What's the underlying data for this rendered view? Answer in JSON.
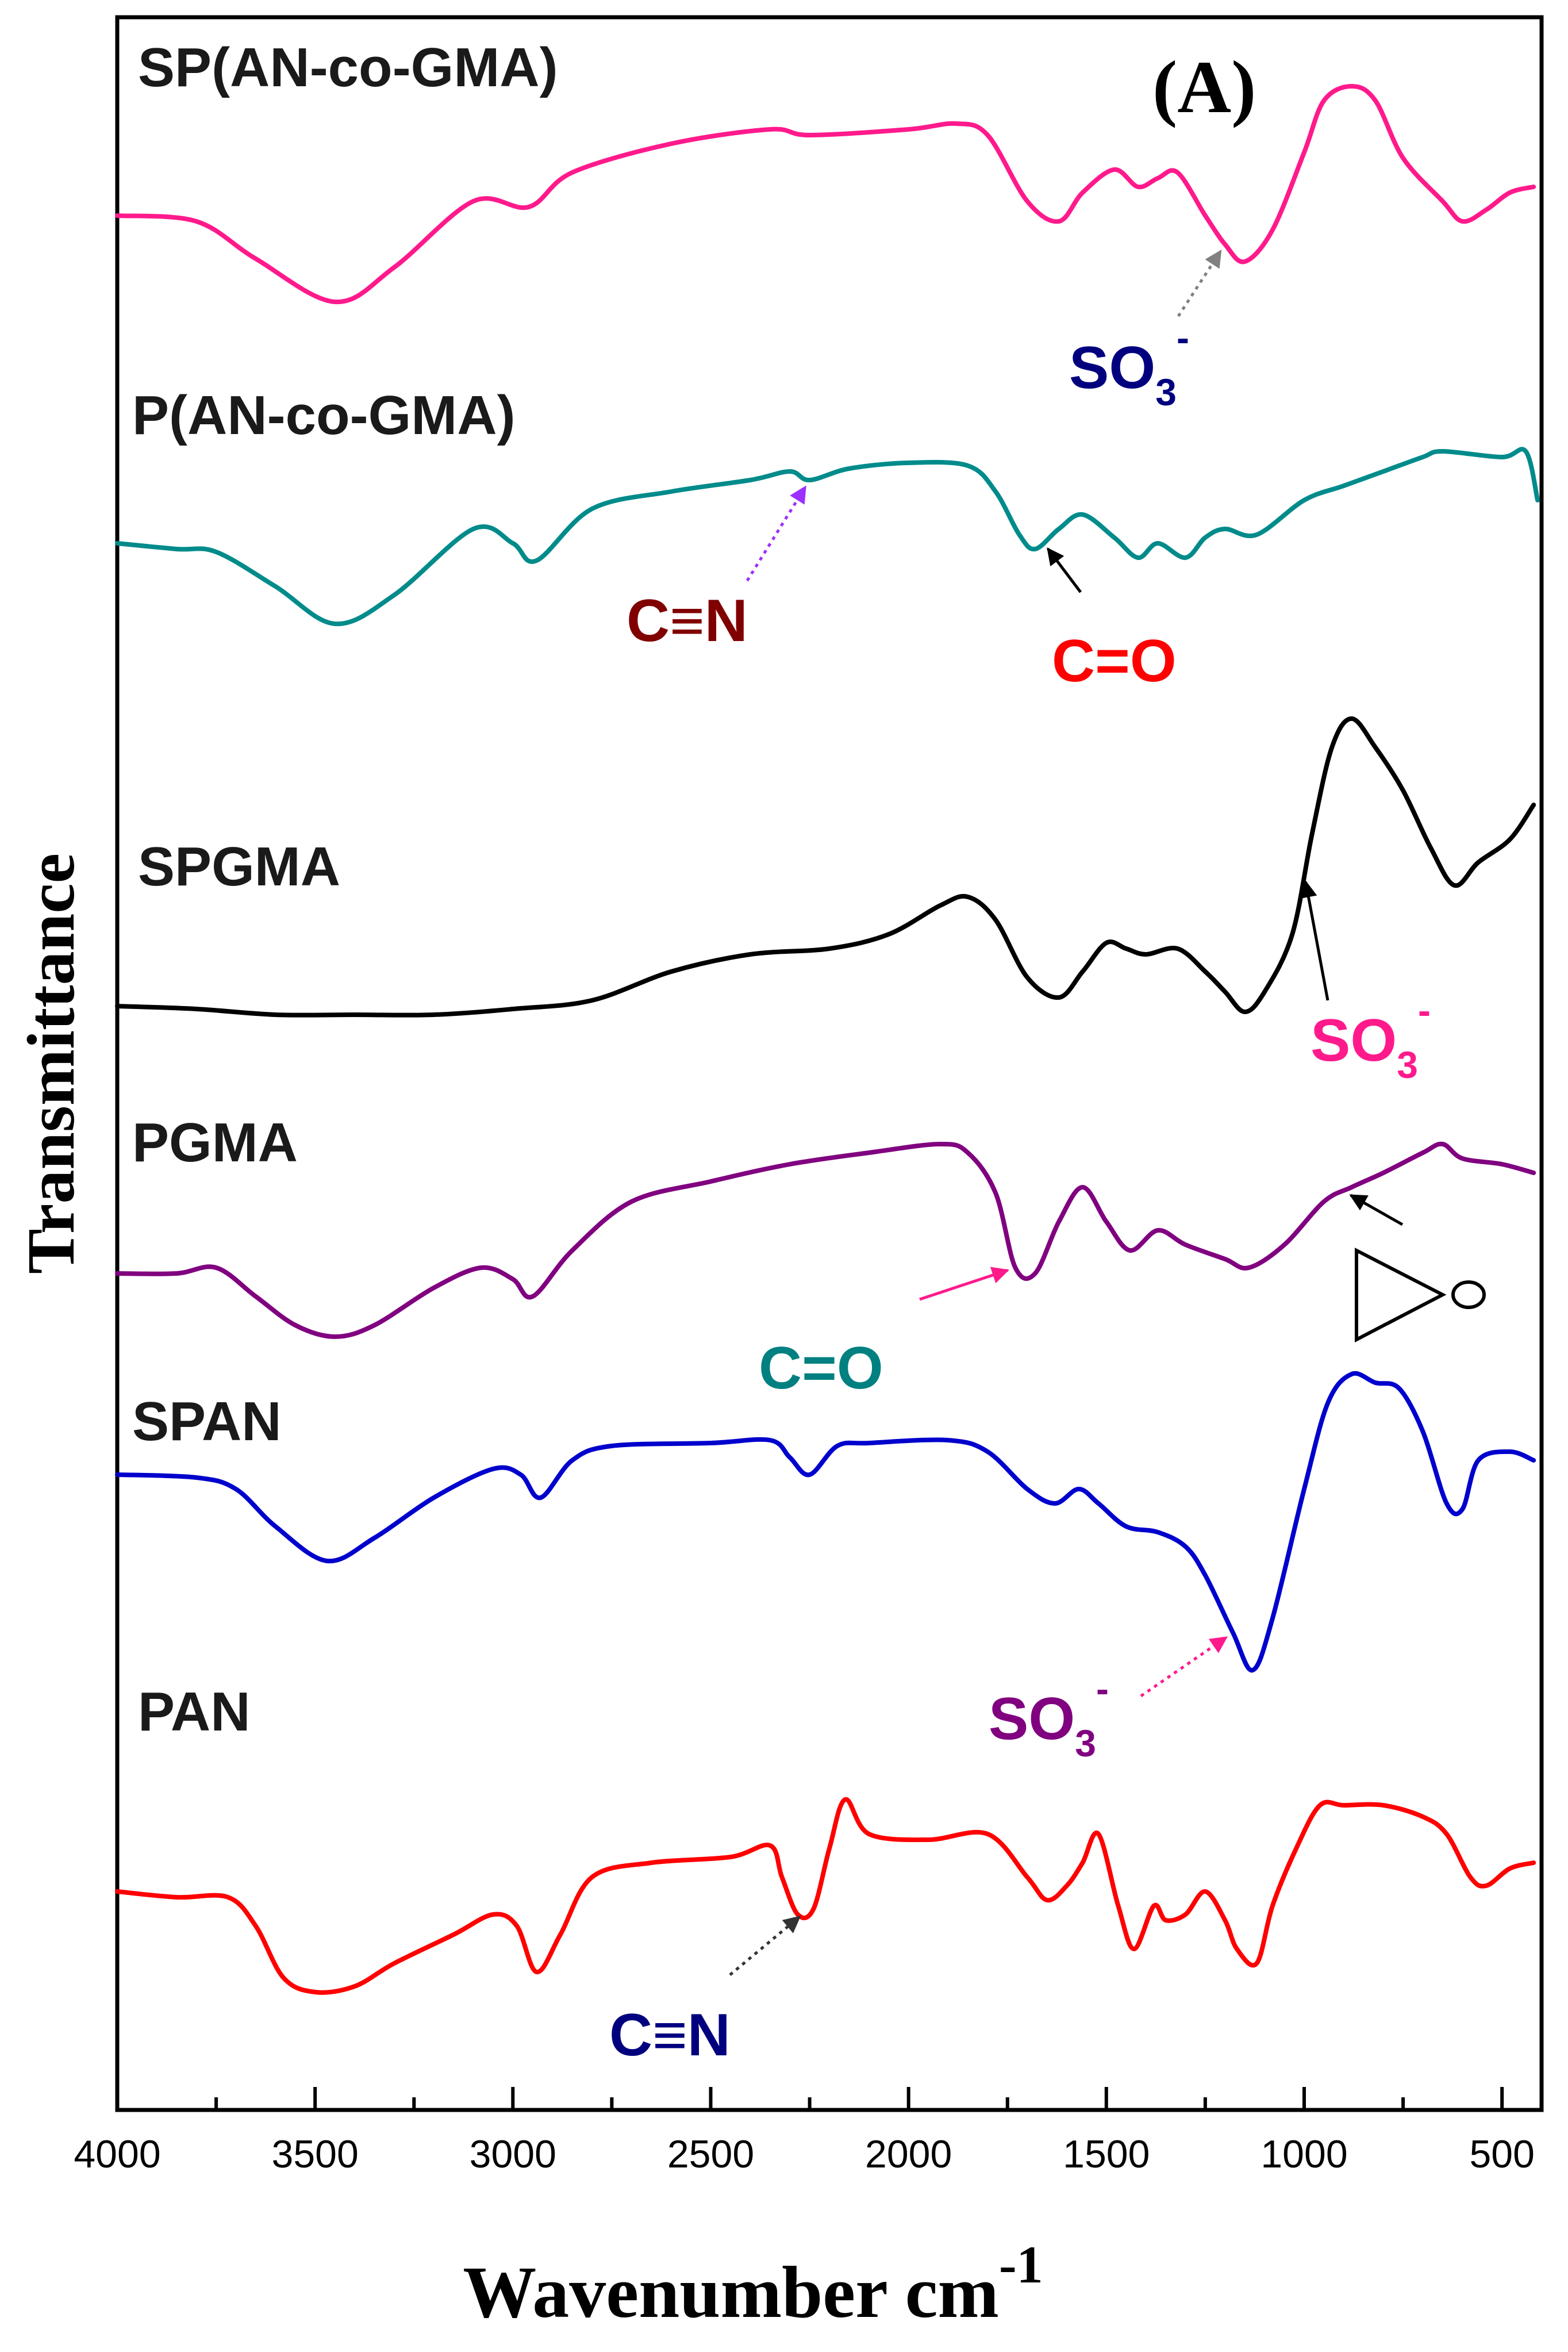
{
  "chart_data": {
    "type": "line",
    "panel_label": "(A)",
    "xlabel": "Wavenumber cm",
    "xlabel_sup": "-1",
    "ylabel": "Transmittance",
    "xlim": [
      4000,
      400
    ],
    "x_ticks": [
      "4000",
      "3500",
      "3000",
      "2500",
      "2000",
      "1500",
      "1000",
      "500"
    ],
    "x_tick_values": [
      4000,
      3500,
      3000,
      2500,
      2000,
      1500,
      1000,
      500
    ],
    "y_units": "arbitrary (stacked, offset spectra)",
    "series": [
      {
        "name": "SP(AN-co-GMA)",
        "color": "#ff1a8c",
        "points": [
          [
            4000,
            0.0
          ],
          [
            3800,
            -0.02
          ],
          [
            3650,
            -0.15
          ],
          [
            3450,
            -0.3
          ],
          [
            3300,
            -0.18
          ],
          [
            3100,
            0.05
          ],
          [
            2960,
            0.03
          ],
          [
            2850,
            0.15
          ],
          [
            2600,
            0.25
          ],
          [
            2350,
            0.3
          ],
          [
            2250,
            0.28
          ],
          [
            2000,
            0.3
          ],
          [
            1880,
            0.32
          ],
          [
            1800,
            0.28
          ],
          [
            1700,
            0.05
          ],
          [
            1620,
            -0.02
          ],
          [
            1560,
            0.08
          ],
          [
            1480,
            0.16
          ],
          [
            1420,
            0.1
          ],
          [
            1370,
            0.13
          ],
          [
            1320,
            0.15
          ],
          [
            1250,
            0.0
          ],
          [
            1200,
            -0.1
          ],
          [
            1150,
            -0.16
          ],
          [
            1080,
            -0.05
          ],
          [
            1000,
            0.22
          ],
          [
            950,
            0.4
          ],
          [
            880,
            0.45
          ],
          [
            820,
            0.4
          ],
          [
            750,
            0.2
          ],
          [
            650,
            0.05
          ],
          [
            600,
            -0.02
          ],
          [
            540,
            0.02
          ],
          [
            480,
            0.08
          ],
          [
            420,
            0.1
          ]
        ]
      },
      {
        "name": "P(AN-co-GMA)",
        "color": "#008b8b",
        "points": [
          [
            4000,
            0.0
          ],
          [
            3850,
            -0.02
          ],
          [
            3750,
            -0.03
          ],
          [
            3600,
            -0.15
          ],
          [
            3450,
            -0.28
          ],
          [
            3300,
            -0.18
          ],
          [
            3100,
            0.05
          ],
          [
            3000,
            0.0
          ],
          [
            2940,
            -0.06
          ],
          [
            2800,
            0.12
          ],
          [
            2600,
            0.18
          ],
          [
            2400,
            0.22
          ],
          [
            2300,
            0.25
          ],
          [
            2250,
            0.22
          ],
          [
            2150,
            0.26
          ],
          [
            2000,
            0.28
          ],
          [
            1850,
            0.27
          ],
          [
            1780,
            0.18
          ],
          [
            1720,
            0.03
          ],
          [
            1680,
            -0.02
          ],
          [
            1620,
            0.05
          ],
          [
            1560,
            0.1
          ],
          [
            1480,
            0.02
          ],
          [
            1420,
            -0.05
          ],
          [
            1370,
            0.0
          ],
          [
            1300,
            -0.05
          ],
          [
            1250,
            0.02
          ],
          [
            1200,
            0.05
          ],
          [
            1120,
            0.03
          ],
          [
            1000,
            0.15
          ],
          [
            900,
            0.2
          ],
          [
            800,
            0.25
          ],
          [
            700,
            0.3
          ],
          [
            650,
            0.32
          ],
          [
            500,
            0.3
          ],
          [
            440,
            0.32
          ],
          [
            410,
            0.15
          ]
        ]
      },
      {
        "name": "SPGMA",
        "color": "#000000",
        "points": [
          [
            4000,
            0.0
          ],
          [
            3800,
            -0.01
          ],
          [
            3600,
            -0.03
          ],
          [
            3400,
            -0.03
          ],
          [
            3200,
            -0.03
          ],
          [
            3000,
            -0.01
          ],
          [
            2800,
            0.02
          ],
          [
            2600,
            0.12
          ],
          [
            2400,
            0.18
          ],
          [
            2200,
            0.2
          ],
          [
            2050,
            0.25
          ],
          [
            1920,
            0.35
          ],
          [
            1850,
            0.38
          ],
          [
            1780,
            0.3
          ],
          [
            1700,
            0.1
          ],
          [
            1620,
            0.03
          ],
          [
            1560,
            0.12
          ],
          [
            1500,
            0.22
          ],
          [
            1450,
            0.2
          ],
          [
            1400,
            0.18
          ],
          [
            1320,
            0.2
          ],
          [
            1250,
            0.12
          ],
          [
            1200,
            0.05
          ],
          [
            1150,
            -0.02
          ],
          [
            1100,
            0.05
          ],
          [
            1030,
            0.25
          ],
          [
            980,
            0.6
          ],
          [
            930,
            0.9
          ],
          [
            880,
            1.0
          ],
          [
            820,
            0.9
          ],
          [
            750,
            0.75
          ],
          [
            680,
            0.55
          ],
          [
            620,
            0.42
          ],
          [
            560,
            0.5
          ],
          [
            480,
            0.58
          ],
          [
            420,
            0.7
          ]
        ]
      },
      {
        "name": "PGMA",
        "color": "#800080",
        "points": [
          [
            4000,
            0.0
          ],
          [
            3850,
            0.0
          ],
          [
            3750,
            0.02
          ],
          [
            3650,
            -0.08
          ],
          [
            3550,
            -0.18
          ],
          [
            3450,
            -0.22
          ],
          [
            3350,
            -0.18
          ],
          [
            3200,
            -0.05
          ],
          [
            3080,
            0.02
          ],
          [
            3000,
            -0.02
          ],
          [
            2950,
            -0.08
          ],
          [
            2850,
            0.08
          ],
          [
            2700,
            0.25
          ],
          [
            2500,
            0.32
          ],
          [
            2300,
            0.38
          ],
          [
            2100,
            0.42
          ],
          [
            1920,
            0.45
          ],
          [
            1850,
            0.42
          ],
          [
            1780,
            0.28
          ],
          [
            1730,
            0.02
          ],
          [
            1680,
            0.0
          ],
          [
            1620,
            0.18
          ],
          [
            1560,
            0.3
          ],
          [
            1500,
            0.18
          ],
          [
            1440,
            0.08
          ],
          [
            1370,
            0.15
          ],
          [
            1300,
            0.1
          ],
          [
            1200,
            0.05
          ],
          [
            1140,
            0.02
          ],
          [
            1050,
            0.1
          ],
          [
            950,
            0.25
          ],
          [
            880,
            0.3
          ],
          [
            800,
            0.35
          ],
          [
            700,
            0.42
          ],
          [
            650,
            0.45
          ],
          [
            600,
            0.4
          ],
          [
            500,
            0.38
          ],
          [
            420,
            0.35
          ]
        ]
      },
      {
        "name": "SPAN",
        "color": "#0000cd",
        "points": [
          [
            4000,
            0.0
          ],
          [
            3800,
            -0.01
          ],
          [
            3700,
            -0.05
          ],
          [
            3600,
            -0.18
          ],
          [
            3470,
            -0.3
          ],
          [
            3350,
            -0.22
          ],
          [
            3200,
            -0.08
          ],
          [
            3050,
            0.02
          ],
          [
            2980,
            0.0
          ],
          [
            2930,
            -0.08
          ],
          [
            2850,
            0.05
          ],
          [
            2750,
            0.1
          ],
          [
            2500,
            0.11
          ],
          [
            2350,
            0.12
          ],
          [
            2300,
            0.06
          ],
          [
            2250,
            0.0
          ],
          [
            2180,
            0.1
          ],
          [
            2100,
            0.11
          ],
          [
            1900,
            0.12
          ],
          [
            1800,
            0.08
          ],
          [
            1700,
            -0.05
          ],
          [
            1630,
            -0.1
          ],
          [
            1570,
            -0.05
          ],
          [
            1520,
            -0.1
          ],
          [
            1450,
            -0.18
          ],
          [
            1370,
            -0.2
          ],
          [
            1300,
            -0.25
          ],
          [
            1250,
            -0.35
          ],
          [
            1180,
            -0.55
          ],
          [
            1130,
            -0.68
          ],
          [
            1080,
            -0.5
          ],
          [
            1000,
            -0.05
          ],
          [
            940,
            0.25
          ],
          [
            880,
            0.35
          ],
          [
            820,
            0.32
          ],
          [
            760,
            0.3
          ],
          [
            700,
            0.15
          ],
          [
            640,
            -0.1
          ],
          [
            600,
            -0.12
          ],
          [
            560,
            0.05
          ],
          [
            480,
            0.08
          ],
          [
            420,
            0.05
          ]
        ]
      },
      {
        "name": "PAN",
        "color": "#ff0000",
        "points": [
          [
            4000,
            0.0
          ],
          [
            3850,
            -0.02
          ],
          [
            3720,
            -0.02
          ],
          [
            3650,
            -0.12
          ],
          [
            3580,
            -0.3
          ],
          [
            3500,
            -0.35
          ],
          [
            3400,
            -0.33
          ],
          [
            3300,
            -0.25
          ],
          [
            3150,
            -0.15
          ],
          [
            3050,
            -0.08
          ],
          [
            2990,
            -0.12
          ],
          [
            2940,
            -0.28
          ],
          [
            2880,
            -0.15
          ],
          [
            2800,
            0.05
          ],
          [
            2650,
            0.1
          ],
          [
            2450,
            0.12
          ],
          [
            2350,
            0.16
          ],
          [
            2320,
            0.05
          ],
          [
            2280,
            -0.08
          ],
          [
            2240,
            -0.06
          ],
          [
            2200,
            0.15
          ],
          [
            2160,
            0.32
          ],
          [
            2100,
            0.2
          ],
          [
            1950,
            0.18
          ],
          [
            1800,
            0.2
          ],
          [
            1700,
            0.05
          ],
          [
            1650,
            -0.03
          ],
          [
            1600,
            0.02
          ],
          [
            1560,
            0.1
          ],
          [
            1520,
            0.2
          ],
          [
            1470,
            -0.05
          ],
          [
            1430,
            -0.2
          ],
          [
            1380,
            -0.05
          ],
          [
            1350,
            -0.1
          ],
          [
            1300,
            -0.08
          ],
          [
            1250,
            0.0
          ],
          [
            1200,
            -0.1
          ],
          [
            1170,
            -0.2
          ],
          [
            1120,
            -0.25
          ],
          [
            1080,
            -0.05
          ],
          [
            1020,
            0.15
          ],
          [
            960,
            0.3
          ],
          [
            900,
            0.3
          ],
          [
            800,
            0.3
          ],
          [
            700,
            0.26
          ],
          [
            640,
            0.2
          ],
          [
            580,
            0.05
          ],
          [
            540,
            0.02
          ],
          [
            480,
            0.08
          ],
          [
            420,
            0.1
          ]
        ]
      }
    ],
    "annotations": [
      {
        "id": "so3-top",
        "text": "SO",
        "sub": "3",
        "sup": "-",
        "color": "#00007f",
        "arrow_color": "#808080",
        "arrow_style": "dotted",
        "target_series": "SP(AN-co-GMA)",
        "target_x": 1200
      },
      {
        "id": "cn-mid",
        "text": "C≡N",
        "color": "#800000",
        "arrow_color": "#9b30ff",
        "arrow_style": "dotted",
        "target_series": "P(AN-co-GMA)",
        "target_x": 2250
      },
      {
        "id": "co-red",
        "text": "C=O",
        "color": "#ff0000",
        "arrow_color": "#000000",
        "arrow_style": "solid",
        "target_series": "P(AN-co-GMA)",
        "target_x": 1660
      },
      {
        "id": "so3-pink",
        "text": "SO",
        "sub": "3",
        "sup": "-",
        "color": "#ff1a8c",
        "arrow_color": "#000000",
        "arrow_style": "solid",
        "target_series": "SPGMA",
        "target_x": 1000
      },
      {
        "id": "epoxide",
        "text": "O",
        "color": "#000000",
        "arrow_color": "#000000",
        "arrow_style": "solid",
        "target_series": "PGMA",
        "target_x": 900
      },
      {
        "id": "co-teal",
        "text": "C=O",
        "color": "#008080",
        "arrow_color": "#ff1a8c",
        "arrow_style": "solid",
        "target_series": "PGMA",
        "target_x": 1730
      },
      {
        "id": "so3-purple",
        "text": "SO",
        "sub": "3",
        "sup": "-",
        "color": "#800080",
        "arrow_color": "#ff1a8c",
        "arrow_style": "dotted",
        "target_series": "SPAN",
        "target_x": 1180
      },
      {
        "id": "cn-bottom",
        "text": "C≡N",
        "color": "#00007f",
        "arrow_color": "#333333",
        "arrow_style": "dotted",
        "target_series": "PAN",
        "target_x": 2260
      }
    ]
  }
}
